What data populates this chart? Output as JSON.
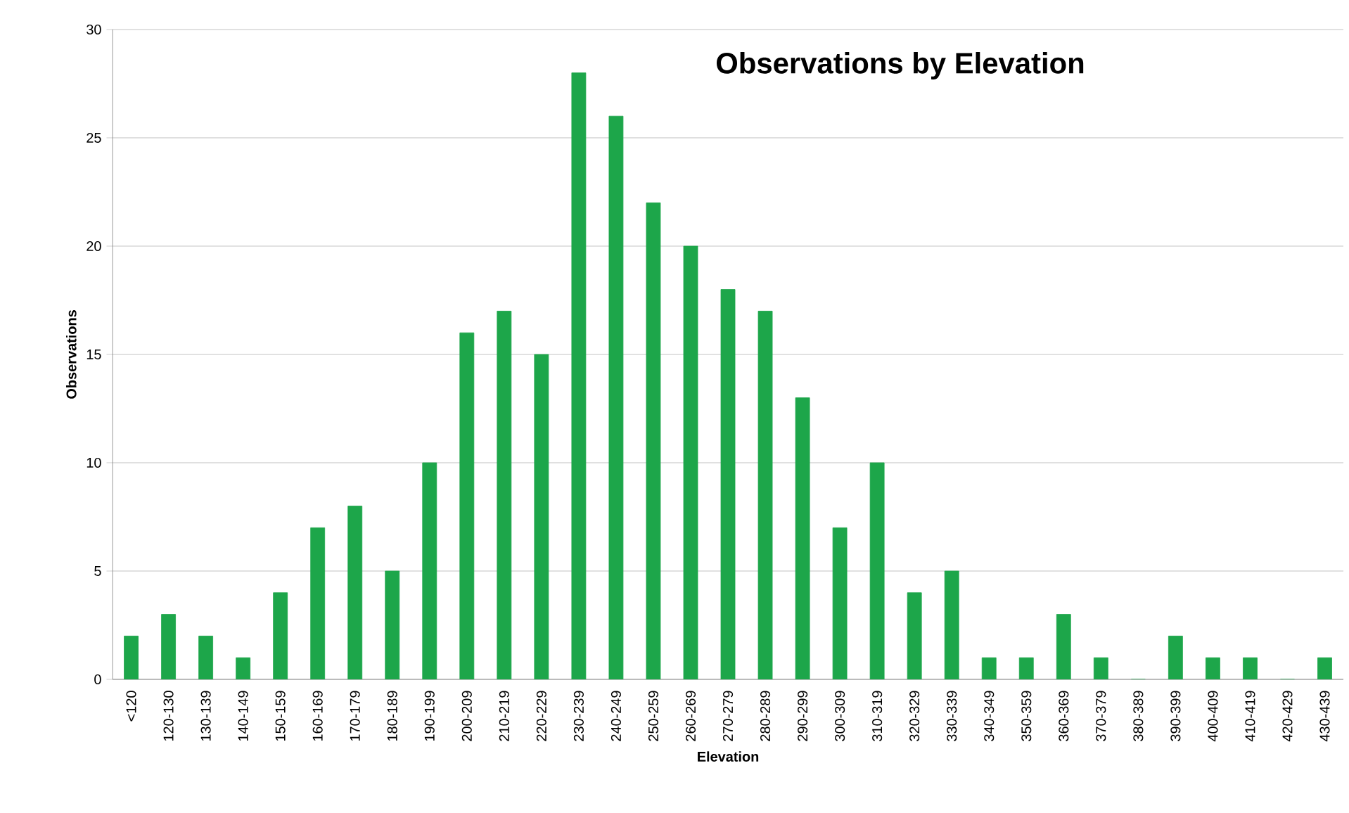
{
  "chart_data": {
    "type": "bar",
    "title": "Observations by Elevation",
    "xlabel": "Elevation",
    "ylabel": "Observations",
    "categories": [
      "<120",
      "120-130",
      "130-139",
      "140-149",
      "150-159",
      "160-169",
      "170-179",
      "180-189",
      "190-199",
      "200-209",
      "210-219",
      "220-229",
      "230-239",
      "240-249",
      "250-259",
      "260-269",
      "270-279",
      "280-289",
      "290-299",
      "300-309",
      "310-319",
      "320-329",
      "330-339",
      "340-349",
      "350-359",
      "360-369",
      "370-379",
      "380-389",
      "390-399",
      "400-409",
      "410-419",
      "420-429",
      "430-439"
    ],
    "values": [
      2,
      3,
      2,
      1,
      4,
      7,
      8,
      5,
      10,
      16,
      17,
      15,
      28,
      26,
      22,
      20,
      18,
      17,
      13,
      7,
      10,
      4,
      5,
      1,
      1,
      3,
      1,
      0,
      2,
      1,
      1,
      0,
      1
    ],
    "color": "#1da64a",
    "ylim": [
      0,
      30
    ],
    "yticks": [
      0,
      5,
      10,
      15,
      20,
      25,
      30
    ],
    "grid": "y"
  }
}
